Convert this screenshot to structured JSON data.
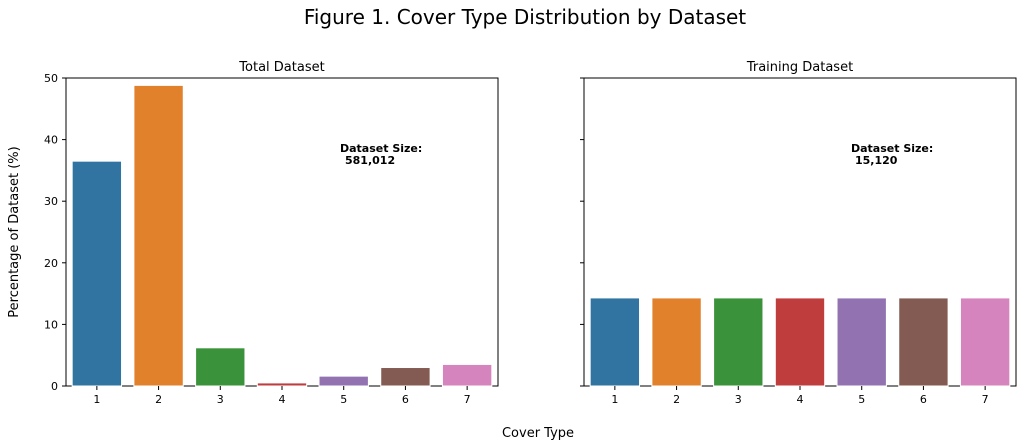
{
  "figure_title": "Figure 1. Cover Type Distribution by Dataset",
  "shared_xlabel": "Cover Type",
  "shared_ylabel": "Percentage of Dataset (%)",
  "colors": [
    "#3274a1",
    "#e1812c",
    "#3a923a",
    "#c03d3e",
    "#9372b2",
    "#845b53",
    "#d684bd"
  ],
  "chart_data": [
    {
      "type": "bar",
      "title": "Total Dataset",
      "categories": [
        "1",
        "2",
        "3",
        "4",
        "5",
        "6",
        "7"
      ],
      "values": [
        36.5,
        48.8,
        6.2,
        0.5,
        1.6,
        3.0,
        3.5
      ],
      "ylim": [
        0,
        50
      ],
      "yticks": [
        0,
        10,
        20,
        30,
        40,
        50
      ],
      "annotation": {
        "line1": "Dataset Size:",
        "line2": "581,012"
      },
      "grid": false
    },
    {
      "type": "bar",
      "title": "Training Dataset",
      "categories": [
        "1",
        "2",
        "3",
        "4",
        "5",
        "6",
        "7"
      ],
      "values": [
        14.3,
        14.3,
        14.3,
        14.3,
        14.3,
        14.3,
        14.3
      ],
      "ylim": [
        0,
        50
      ],
      "yticks": [
        0,
        10,
        20,
        30,
        40,
        50
      ],
      "annotation": {
        "line1": "Dataset Size:",
        "line2": "15,120"
      },
      "grid": false
    }
  ]
}
